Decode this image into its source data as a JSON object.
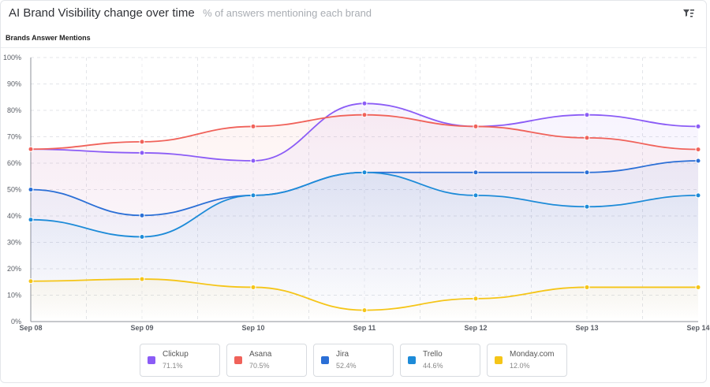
{
  "header": {
    "title": "AI Brand Visibility change over time",
    "subtitle": "% of answers mentioning each brand",
    "filter_icon": "filter-icon"
  },
  "section_label": "Brands Answer Mentions",
  "chart_data": {
    "type": "line",
    "categories": [
      "Sep 08",
      "Sep 09",
      "Sep 10",
      "Sep 11",
      "Sep 12",
      "Sep 13",
      "Sep 14"
    ],
    "ylim": [
      0,
      100
    ],
    "yticks": [
      "0%",
      "10%",
      "20%",
      "30%",
      "40%",
      "50%",
      "60%",
      "70%",
      "80%",
      "90%",
      "100%"
    ],
    "grid": true,
    "legend_position": "bottom",
    "series": [
      {
        "name": "Clickup",
        "summary": "71.1%",
        "color": "#8b5cf6",
        "values": [
          65.3,
          63.9,
          60.9,
          82.6,
          73.9,
          78.3,
          73.9
        ]
      },
      {
        "name": "Asana",
        "summary": "70.5%",
        "color": "#f0625a",
        "values": [
          65.3,
          68.1,
          73.9,
          78.3,
          73.9,
          69.6,
          65.2
        ]
      },
      {
        "name": "Jira",
        "summary": "52.4%",
        "color": "#2b6fd6",
        "values": [
          50.0,
          40.2,
          47.8,
          56.5,
          56.5,
          56.5,
          60.9
        ]
      },
      {
        "name": "Trello",
        "summary": "44.6%",
        "color": "#1d8bd8",
        "values": [
          38.6,
          32.1,
          47.8,
          56.5,
          47.8,
          43.5,
          47.8
        ]
      },
      {
        "name": "Monday.com",
        "summary": "12.0%",
        "color": "#f5c518",
        "values": [
          15.3,
          16.1,
          13.0,
          4.3,
          8.7,
          13.0,
          13.0
        ]
      }
    ]
  }
}
